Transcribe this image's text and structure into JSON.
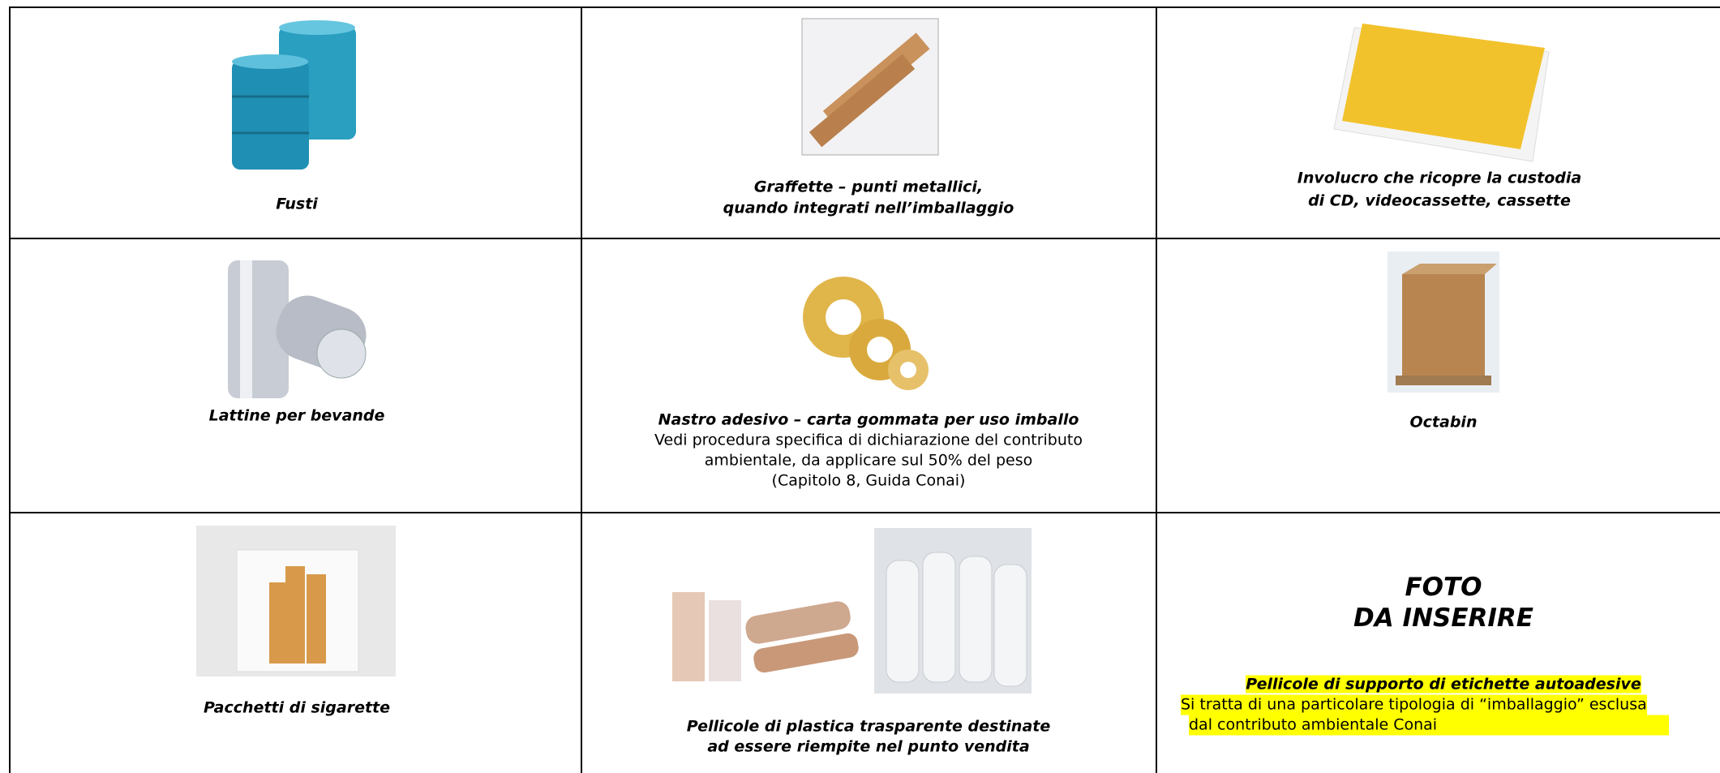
{
  "table": {
    "rows": [
      [
        {
          "caption": [
            "Fusti"
          ]
        },
        {
          "caption": [
            "Graffette – punti metallici,",
            "quando integrati nell’imballaggio"
          ]
        },
        {
          "caption": [
            "Involucro che ricopre la custodia",
            "di CD, videocassette, cassette"
          ]
        }
      ],
      [
        {
          "caption": [
            "Lattine per bevande"
          ]
        },
        {
          "caption": [
            "Nastro adesivo – carta gommata per uso imballo"
          ],
          "notes": [
            "Vedi procedura specifica di dichiarazione del contributo",
            "ambientale, da applicare sul 50% del peso",
            "(Capitolo 8, Guida Conai)"
          ]
        },
        {
          "caption": [
            "Octabin"
          ]
        }
      ],
      [
        {
          "caption": [
            "Pacchetti di sigarette"
          ]
        },
        {
          "caption": [
            "Pellicole di plastica trasparente destinate",
            "ad essere riempite nel punto vendita"
          ]
        },
        {
          "placeholder": [
            "FOTO",
            "DA INSERIRE"
          ],
          "caption": [
            "Pellicole di supporto di etichette autoadesive"
          ],
          "notes": [
            "Si tratta di una particolare tipologia di “imballaggio” esclusa",
            "dal contributo ambientale Conai"
          ]
        }
      ]
    ]
  }
}
